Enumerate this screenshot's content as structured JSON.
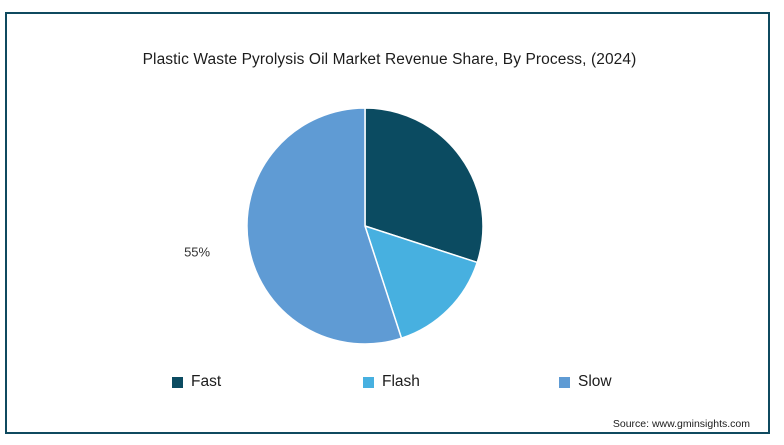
{
  "chart_data": {
    "type": "pie",
    "title": "Plastic Waste Pyrolysis Oil Market Revenue Share, By Process, (2024)",
    "categories": [
      "Fast",
      "Flash",
      "Slow"
    ],
    "values": [
      30,
      15,
      55
    ],
    "colors": [
      "#0b4b61",
      "#47b0e0",
      "#5f9bd4"
    ],
    "data_labels": [
      "",
      "",
      "55%"
    ],
    "legend_placement": "bottom"
  },
  "source": "Source: www.gminsights.com",
  "colors": {
    "border": "#0f4a5f",
    "text": "#1c1c1c"
  }
}
